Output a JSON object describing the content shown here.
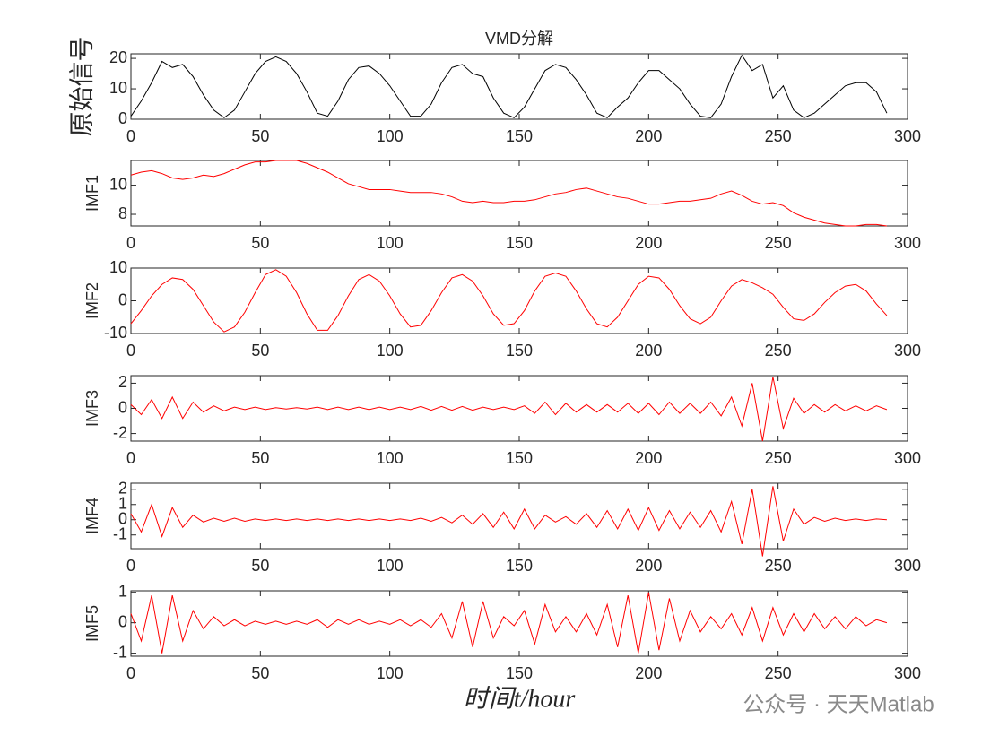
{
  "chart_data": [
    {
      "type": "line",
      "title": "VMD分解",
      "ylabel": "原始信号",
      "x": [
        0,
        4,
        8,
        12,
        16,
        20,
        24,
        28,
        32,
        36,
        40,
        44,
        48,
        52,
        56,
        60,
        64,
        68,
        72,
        76,
        80,
        84,
        88,
        92,
        96,
        100,
        104,
        108,
        112,
        116,
        120,
        124,
        128,
        132,
        136,
        140,
        144,
        148,
        152,
        156,
        160,
        164,
        168,
        172,
        176,
        180,
        184,
        188,
        192,
        196,
        200,
        204,
        208,
        212,
        216,
        220,
        224,
        228,
        232,
        236,
        240,
        244,
        248,
        252,
        256,
        260,
        264,
        268,
        272,
        276,
        280,
        284,
        288,
        292
      ],
      "series": [
        {
          "color": "#000000",
          "values": [
            1,
            6,
            12,
            19,
            17,
            18,
            14,
            8,
            3,
            0.5,
            3,
            9,
            15,
            19,
            20.5,
            19,
            15,
            9,
            2,
            1,
            6,
            13,
            17,
            17.5,
            15,
            11,
            6,
            1,
            1,
            5,
            12,
            17,
            18,
            15,
            14,
            7,
            2,
            0.5,
            4,
            10,
            16,
            18,
            17,
            13,
            8,
            2,
            0.5,
            4,
            7,
            12,
            16,
            16,
            13,
            10,
            5,
            1,
            0.5,
            5,
            14,
            21,
            16,
            18,
            7,
            11,
            3,
            0.5,
            2,
            5,
            8,
            11,
            12,
            12,
            9,
            2
          ]
        }
      ],
      "xlim": [
        0,
        300
      ],
      "xticks": [
        0,
        50,
        100,
        150,
        200,
        250,
        300
      ],
      "ylim": [
        0,
        21.5
      ],
      "yticks": [
        0,
        10,
        20
      ]
    },
    {
      "type": "line",
      "ylabel": "IMF1",
      "x": [
        0,
        4,
        8,
        12,
        16,
        20,
        24,
        28,
        32,
        36,
        40,
        44,
        48,
        52,
        56,
        60,
        64,
        68,
        72,
        76,
        80,
        84,
        88,
        92,
        96,
        100,
        104,
        108,
        112,
        116,
        120,
        124,
        128,
        132,
        136,
        140,
        144,
        148,
        152,
        156,
        160,
        164,
        168,
        172,
        176,
        180,
        184,
        188,
        192,
        196,
        200,
        204,
        208,
        212,
        216,
        220,
        224,
        228,
        232,
        236,
        240,
        244,
        248,
        252,
        256,
        260,
        264,
        268,
        272,
        276,
        280,
        284,
        288,
        292
      ],
      "series": [
        {
          "color": "#ff0000",
          "values": [
            10.7,
            10.9,
            11.0,
            10.8,
            10.5,
            10.4,
            10.5,
            10.7,
            10.6,
            10.8,
            11.1,
            11.4,
            11.6,
            11.6,
            11.7,
            11.7,
            11.7,
            11.5,
            11.2,
            10.9,
            10.5,
            10.1,
            9.9,
            9.7,
            9.7,
            9.7,
            9.6,
            9.5,
            9.5,
            9.5,
            9.4,
            9.2,
            8.9,
            8.8,
            8.9,
            8.8,
            8.8,
            8.9,
            8.9,
            9.0,
            9.2,
            9.4,
            9.5,
            9.7,
            9.8,
            9.6,
            9.4,
            9.2,
            9.1,
            8.9,
            8.7,
            8.7,
            8.8,
            8.9,
            8.9,
            9.0,
            9.1,
            9.4,
            9.6,
            9.3,
            8.9,
            8.7,
            8.8,
            8.6,
            8.1,
            7.8,
            7.6,
            7.4,
            7.3,
            7.2,
            7.2,
            7.3,
            7.3,
            7.2
          ]
        }
      ],
      "xlim": [
        0,
        300
      ],
      "xticks": [
        0,
        50,
        100,
        150,
        200,
        250,
        300
      ],
      "ylim": [
        7.2,
        11.7
      ],
      "yticks": [
        8,
        10
      ]
    },
    {
      "type": "line",
      "ylabel": "IMF2",
      "x": [
        0,
        4,
        8,
        12,
        16,
        20,
        24,
        28,
        32,
        36,
        40,
        44,
        48,
        52,
        56,
        60,
        64,
        68,
        72,
        76,
        80,
        84,
        88,
        92,
        96,
        100,
        104,
        108,
        112,
        116,
        120,
        124,
        128,
        132,
        136,
        140,
        144,
        148,
        152,
        156,
        160,
        164,
        168,
        172,
        176,
        180,
        184,
        188,
        192,
        196,
        200,
        204,
        208,
        212,
        216,
        220,
        224,
        228,
        232,
        236,
        240,
        244,
        248,
        252,
        256,
        260,
        264,
        268,
        272,
        276,
        280,
        284,
        288,
        292
      ],
      "series": [
        {
          "color": "#ff0000",
          "values": [
            -7,
            -3,
            1.5,
            5,
            7,
            6.5,
            3.5,
            -1.5,
            -6.5,
            -9.5,
            -8,
            -3.5,
            2.5,
            8,
            9.5,
            7.5,
            2.5,
            -4,
            -9,
            -9,
            -4.5,
            1.5,
            6.5,
            8,
            6,
            1.5,
            -4,
            -8,
            -7.5,
            -3,
            2.5,
            7,
            8,
            6,
            1.5,
            -4,
            -7.5,
            -7,
            -3,
            3,
            7.5,
            8.5,
            7.5,
            3,
            -2.5,
            -7,
            -8,
            -5,
            0,
            5,
            7.5,
            7,
            3.5,
            -1.5,
            -5.5,
            -7,
            -5,
            0,
            4.5,
            6.5,
            5.5,
            4,
            2,
            -2,
            -5.5,
            -6,
            -4,
            -0.5,
            2.5,
            4.5,
            5,
            3,
            -1,
            -4.5
          ]
        }
      ],
      "xlim": [
        0,
        300
      ],
      "xticks": [
        0,
        50,
        100,
        150,
        200,
        250,
        300
      ],
      "ylim": [
        -10,
        10
      ],
      "yticks": [
        -10,
        0,
        10
      ]
    },
    {
      "type": "line",
      "ylabel": "IMF3",
      "x": [
        0,
        4,
        8,
        12,
        16,
        20,
        24,
        28,
        32,
        36,
        40,
        44,
        48,
        52,
        56,
        60,
        64,
        68,
        72,
        76,
        80,
        84,
        88,
        92,
        96,
        100,
        104,
        108,
        112,
        116,
        120,
        124,
        128,
        132,
        136,
        140,
        144,
        148,
        152,
        156,
        160,
        164,
        168,
        172,
        176,
        180,
        184,
        188,
        192,
        196,
        200,
        204,
        208,
        212,
        216,
        220,
        224,
        228,
        232,
        236,
        240,
        244,
        248,
        252,
        256,
        260,
        264,
        268,
        272,
        276,
        280,
        284,
        288,
        292
      ],
      "series": [
        {
          "color": "#ff0000",
          "values": [
            0.3,
            -0.5,
            0.7,
            -0.8,
            0.9,
            -0.8,
            0.5,
            -0.3,
            0.2,
            -0.2,
            0.1,
            -0.1,
            0.1,
            -0.1,
            0.05,
            -0.05,
            0.05,
            -0.05,
            0.1,
            -0.1,
            0.1,
            -0.1,
            0.1,
            -0.1,
            0.1,
            -0.1,
            0.1,
            -0.1,
            0.15,
            -0.15,
            0.15,
            -0.15,
            0.15,
            -0.15,
            0.1,
            -0.1,
            0.1,
            -0.1,
            0.2,
            -0.4,
            0.5,
            -0.5,
            0.4,
            -0.3,
            0.3,
            -0.3,
            0.3,
            -0.3,
            0.4,
            -0.4,
            0.4,
            -0.5,
            0.5,
            -0.4,
            0.4,
            -0.4,
            0.5,
            -0.6,
            0.9,
            -1.4,
            2.0,
            -2.6,
            2.5,
            -1.6,
            0.8,
            -0.4,
            0.3,
            -0.3,
            0.3,
            -0.2,
            0.2,
            -0.2,
            0.2,
            -0.1
          ]
        }
      ],
      "xlim": [
        0,
        300
      ],
      "xticks": [
        0,
        50,
        100,
        150,
        200,
        250,
        300
      ],
      "ylim": [
        -2.6,
        2.6
      ],
      "yticks": [
        -2,
        0,
        2
      ]
    },
    {
      "type": "line",
      "ylabel": "IMF4",
      "x": [
        0,
        4,
        8,
        12,
        16,
        20,
        24,
        28,
        32,
        36,
        40,
        44,
        48,
        52,
        56,
        60,
        64,
        68,
        72,
        76,
        80,
        84,
        88,
        92,
        96,
        100,
        104,
        108,
        112,
        116,
        120,
        124,
        128,
        132,
        136,
        140,
        144,
        148,
        152,
        156,
        160,
        164,
        168,
        172,
        176,
        180,
        184,
        188,
        192,
        196,
        200,
        204,
        208,
        212,
        216,
        220,
        224,
        228,
        232,
        236,
        240,
        244,
        248,
        252,
        256,
        260,
        264,
        268,
        272,
        276,
        280,
        284,
        288,
        292
      ],
      "series": [
        {
          "color": "#ff0000",
          "values": [
            0.4,
            -0.8,
            1.0,
            -1.1,
            0.8,
            -0.5,
            0.3,
            -0.15,
            0.1,
            -0.1,
            0.1,
            -0.1,
            0.05,
            -0.05,
            0.05,
            -0.05,
            0.05,
            -0.05,
            0.05,
            -0.05,
            0.05,
            -0.05,
            0.05,
            -0.05,
            0.05,
            -0.05,
            0.05,
            -0.05,
            0.1,
            -0.1,
            0.15,
            -0.2,
            0.3,
            -0.3,
            0.4,
            -0.5,
            0.5,
            -0.6,
            0.7,
            -0.6,
            0.3,
            -0.15,
            0.2,
            -0.3,
            0.4,
            -0.5,
            0.6,
            -0.6,
            0.7,
            -0.7,
            0.8,
            -0.7,
            0.6,
            -0.6,
            0.5,
            -0.5,
            0.6,
            -0.8,
            1.2,
            -1.6,
            2.0,
            -2.4,
            2.2,
            -1.4,
            0.7,
            -0.3,
            0.15,
            -0.1,
            0.1,
            -0.05,
            0.05,
            -0.05,
            0.05,
            0
          ]
        }
      ],
      "xlim": [
        0,
        300
      ],
      "xticks": [
        0,
        50,
        100,
        150,
        200,
        250,
        300
      ],
      "ylim": [
        -1.9,
        2.4
      ],
      "yticks": [
        -1,
        0,
        1,
        2
      ]
    },
    {
      "type": "line",
      "ylabel": "IMF5",
      "xlabel": "时间t/hour",
      "x": [
        0,
        4,
        8,
        12,
        16,
        20,
        24,
        28,
        32,
        36,
        40,
        44,
        48,
        52,
        56,
        60,
        64,
        68,
        72,
        76,
        80,
        84,
        88,
        92,
        96,
        100,
        104,
        108,
        112,
        116,
        120,
        124,
        128,
        132,
        136,
        140,
        144,
        148,
        152,
        156,
        160,
        164,
        168,
        172,
        176,
        180,
        184,
        188,
        192,
        196,
        200,
        204,
        208,
        212,
        216,
        220,
        224,
        228,
        232,
        236,
        240,
        244,
        248,
        252,
        256,
        260,
        264,
        268,
        272,
        276,
        280,
        284,
        288,
        292
      ],
      "series": [
        {
          "color": "#ff0000",
          "values": [
            0.3,
            -0.6,
            0.9,
            -1.0,
            0.9,
            -0.6,
            0.4,
            -0.2,
            0.2,
            -0.1,
            0.1,
            -0.1,
            0.05,
            -0.05,
            0.05,
            -0.05,
            0.05,
            -0.05,
            0.1,
            -0.15,
            0.1,
            -0.05,
            0.1,
            -0.05,
            0.05,
            -0.05,
            0.1,
            -0.1,
            0.1,
            -0.15,
            0.3,
            -0.5,
            0.7,
            -0.8,
            0.7,
            -0.5,
            0.2,
            -0.1,
            0.4,
            -0.7,
            0.6,
            -0.3,
            0.2,
            -0.3,
            0.3,
            -0.4,
            0.6,
            -0.8,
            0.9,
            -1.0,
            1.0,
            -0.9,
            0.8,
            -0.6,
            0.4,
            -0.3,
            0.2,
            -0.2,
            0.3,
            -0.4,
            0.5,
            -0.6,
            0.5,
            -0.4,
            0.3,
            -0.3,
            0.3,
            -0.2,
            0.2,
            -0.2,
            0.2,
            -0.1,
            0.1,
            0
          ]
        }
      ],
      "xlim": [
        0,
        300
      ],
      "xticks": [
        0,
        50,
        100,
        150,
        200,
        250,
        300
      ],
      "ylim": [
        -1.1,
        1.05
      ],
      "yticks": [
        -1,
        0,
        1
      ]
    }
  ],
  "watermark": "公众号 · 天天Matlab"
}
